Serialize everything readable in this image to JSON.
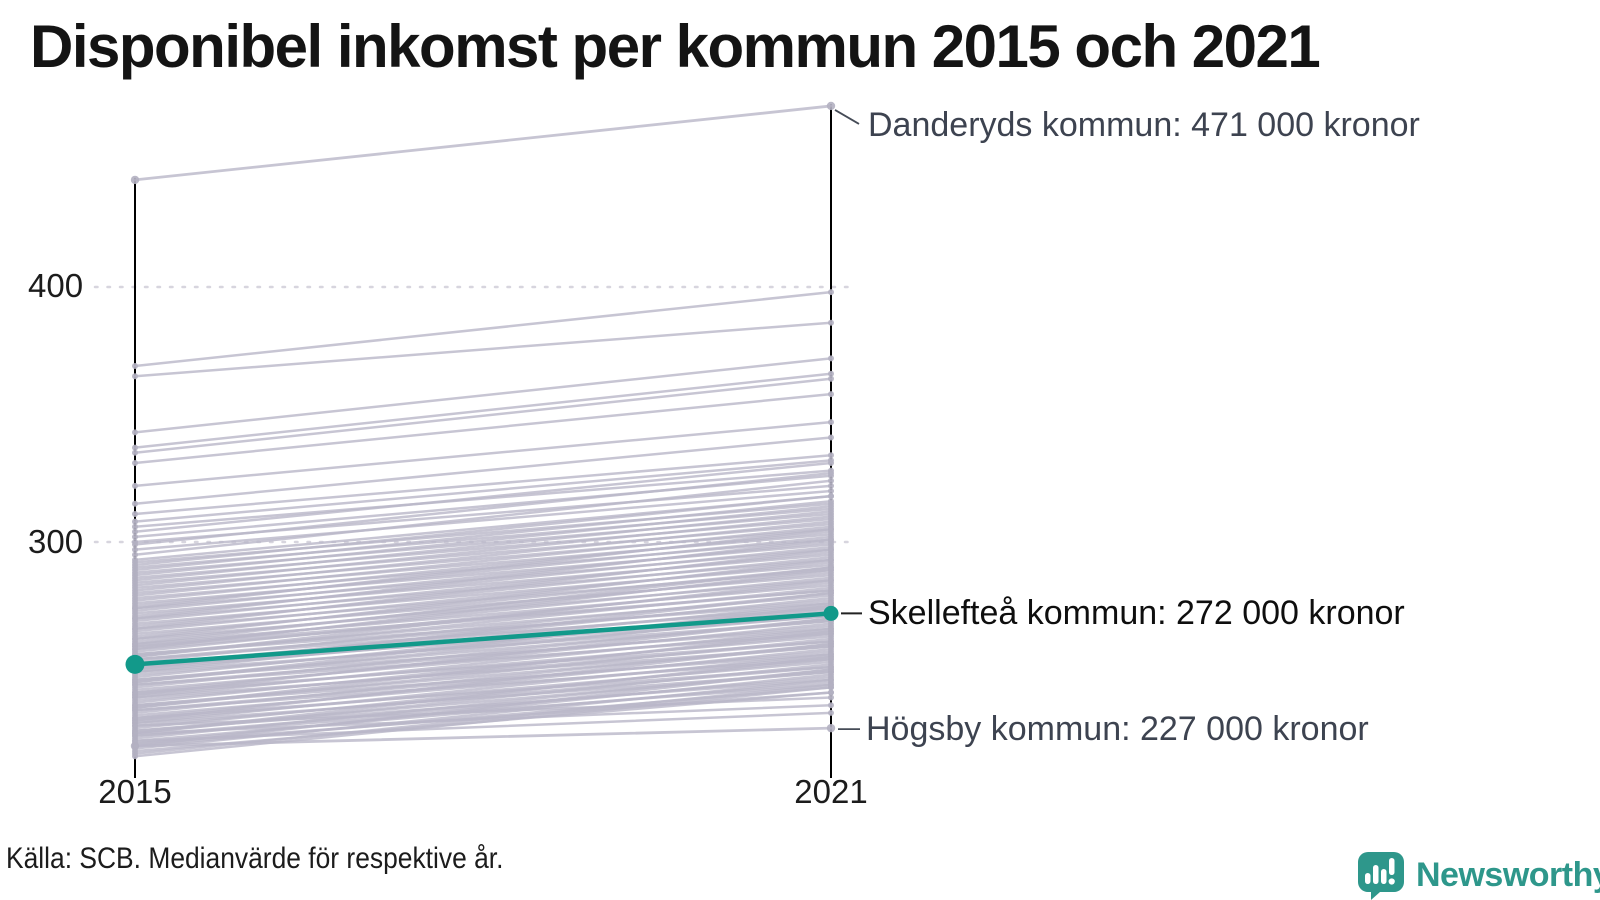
{
  "title": "Disponibel inkomst per kommun 2015 och 2021",
  "footer": {
    "source": "Källa: SCB. Medianvärde för respektive år."
  },
  "branding": {
    "logo_text": "Newsworthy",
    "logo_icon": "newsworthy-speech-bubble-chart-icon",
    "logo_color": "#2e978b"
  },
  "colors": {
    "highlight_teal": "#12998a",
    "line_gray": "#b9b7c8",
    "dot_gray": "#b2b0c1",
    "axis_black": "#000000",
    "grid_gray": "#d7d5de",
    "annotation_dark": "#3d4350",
    "annotation_black": "#0e0e0e"
  },
  "chart_data": {
    "type": "line",
    "variant": "slopegraph",
    "title": "Disponibel inkomst per kommun 2015 och 2021",
    "x_categories": [
      "2015",
      "2021"
    ],
    "y_ticks": [
      {
        "label": "400",
        "value": 400
      },
      {
        "label": "300",
        "value": 300
      }
    ],
    "y_axis_unit": "tusen kronor (implied by '000 kronor' labels)",
    "grid": "dotted horizontal at ticks",
    "legend_position": "none",
    "series": [
      {
        "name": "Danderyds kommun",
        "role": "labeled",
        "values": [
          442,
          471
        ],
        "label": "Danderyds kommun: 471 000 kronor",
        "value_2021_text": "471 000 kronor"
      },
      {
        "name": "Skellefteå kommun",
        "role": "highlight",
        "values": [
          252,
          272
        ],
        "label": "Skellefteå kommun: 272 000 kronor",
        "value_2021_text": "272 000 kronor"
      },
      {
        "name": "Högsby kommun",
        "role": "labeled",
        "values": [
          220,
          227
        ],
        "label": "Högsby kommun: 227 000 kronor",
        "value_2021_text": "227 000 kronor"
      }
    ],
    "background_lines": [
      [
        369,
        398
      ],
      [
        365,
        386
      ],
      [
        343,
        372
      ],
      [
        337,
        366
      ],
      [
        335,
        364
      ],
      [
        331,
        358
      ],
      [
        322,
        347
      ],
      [
        315,
        341
      ],
      [
        311,
        334
      ],
      [
        308,
        332
      ],
      [
        306,
        328
      ],
      [
        304,
        331
      ],
      [
        302,
        326
      ],
      [
        300,
        322
      ],
      [
        299,
        327
      ],
      [
        297,
        320
      ],
      [
        295,
        324
      ],
      [
        293,
        318
      ],
      [
        292,
        315
      ],
      [
        291,
        318
      ],
      [
        290,
        313
      ],
      [
        289,
        316
      ],
      [
        288,
        311
      ],
      [
        287,
        314
      ],
      [
        286,
        309
      ],
      [
        285,
        312
      ],
      [
        284,
        307
      ],
      [
        283,
        310
      ],
      [
        282,
        305
      ],
      [
        281,
        308
      ],
      [
        280,
        303
      ],
      [
        279,
        306
      ],
      [
        278,
        301
      ],
      [
        277,
        304
      ],
      [
        276,
        299
      ],
      [
        275,
        302
      ],
      [
        274,
        297
      ],
      [
        273,
        300
      ],
      [
        272,
        295
      ],
      [
        271,
        298
      ],
      [
        270,
        293
      ],
      [
        269,
        296
      ],
      [
        268,
        291
      ],
      [
        267,
        294
      ],
      [
        266,
        289
      ],
      [
        265,
        292
      ],
      [
        264,
        287
      ],
      [
        263,
        290
      ],
      [
        262,
        285
      ],
      [
        266,
        297
      ],
      [
        270,
        301
      ],
      [
        274,
        305
      ],
      [
        262,
        293
      ],
      [
        258,
        289
      ],
      [
        261,
        288
      ],
      [
        260,
        283
      ],
      [
        259,
        286
      ],
      [
        258,
        281
      ],
      [
        257,
        284
      ],
      [
        256,
        279
      ],
      [
        255,
        282
      ],
      [
        254,
        277
      ],
      [
        253,
        280
      ],
      [
        252,
        275
      ],
      [
        251,
        278
      ],
      [
        250,
        273
      ],
      [
        249,
        276
      ],
      [
        248,
        271
      ],
      [
        247,
        274
      ],
      [
        246,
        269
      ],
      [
        245,
        272
      ],
      [
        244,
        267
      ],
      [
        243,
        270
      ],
      [
        242,
        265
      ],
      [
        241,
        268
      ],
      [
        240,
        263
      ],
      [
        239,
        266
      ],
      [
        238,
        261
      ],
      [
        237,
        264
      ],
      [
        236,
        259
      ],
      [
        235,
        262
      ],
      [
        234,
        257
      ],
      [
        233,
        260
      ],
      [
        232,
        255
      ],
      [
        231,
        258
      ],
      [
        230,
        253
      ],
      [
        229,
        256
      ],
      [
        228,
        251
      ],
      [
        227,
        254
      ],
      [
        226,
        249
      ],
      [
        225,
        252
      ],
      [
        224,
        247
      ],
      [
        223,
        250
      ],
      [
        222,
        245
      ],
      [
        221,
        248
      ],
      [
        220,
        243
      ],
      [
        219,
        246
      ],
      [
        218,
        241
      ],
      [
        217,
        244
      ],
      [
        216,
        243
      ],
      [
        259,
        281
      ],
      [
        254,
        274
      ],
      [
        249,
        269
      ],
      [
        244,
        264
      ],
      [
        239,
        259
      ],
      [
        234,
        254
      ],
      [
        229,
        249
      ],
      [
        224,
        244
      ],
      [
        250,
        280
      ],
      [
        245,
        275
      ],
      [
        240,
        270
      ],
      [
        235,
        265
      ],
      [
        230,
        260
      ],
      [
        225,
        255
      ],
      [
        220,
        250
      ],
      [
        256,
        276
      ],
      [
        251,
        271
      ],
      [
        246,
        266
      ],
      [
        241,
        261
      ],
      [
        236,
        256
      ],
      [
        231,
        251
      ],
      [
        226,
        246
      ],
      [
        221,
        241
      ],
      [
        260,
        290
      ],
      [
        255,
        285
      ],
      [
        228,
        239
      ],
      [
        225,
        236
      ],
      [
        222,
        233
      ]
    ]
  }
}
